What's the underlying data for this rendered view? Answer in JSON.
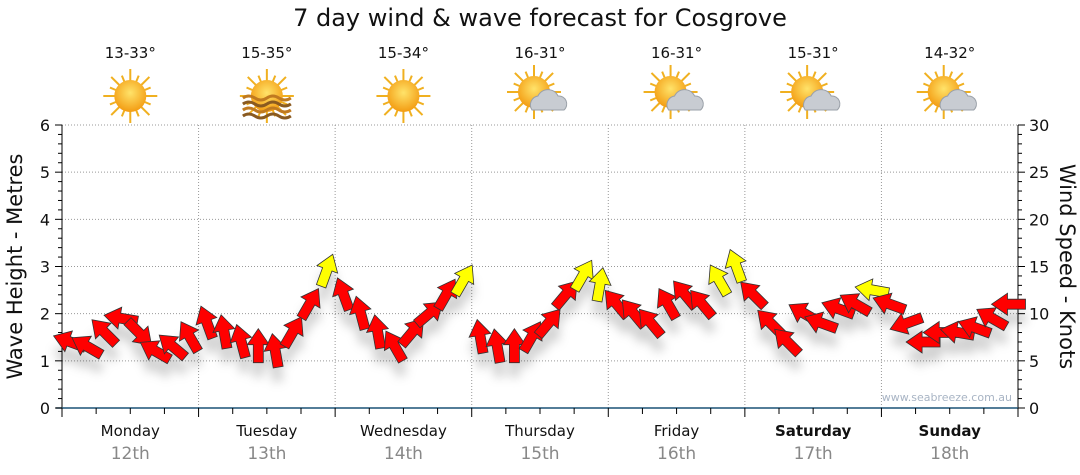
{
  "title": "7 day wind & wave forecast for Cosgrove",
  "watermark": "www.seabreeze.com.au",
  "colors": {
    "wind_low": "#ff0000",
    "wind_high": "#ffff00",
    "axis": "#1a5276"
  },
  "days": [
    {
      "name": "Monday",
      "date": "12th",
      "temp": "13-33°",
      "icon": "sunny-icon",
      "bold": false
    },
    {
      "name": "Tuesday",
      "date": "13th",
      "temp": "15-35°",
      "icon": "hazy-sun-icon",
      "bold": false
    },
    {
      "name": "Wednesday",
      "date": "14th",
      "temp": "15-34°",
      "icon": "sunny-icon",
      "bold": false
    },
    {
      "name": "Thursday",
      "date": "15th",
      "temp": "16-31°",
      "icon": "partly-cloudy-icon",
      "bold": false
    },
    {
      "name": "Friday",
      "date": "16th",
      "temp": "16-31°",
      "icon": "partly-cloudy-icon",
      "bold": false
    },
    {
      "name": "Saturday",
      "date": "17th",
      "temp": "15-31°",
      "icon": "partly-cloudy-icon",
      "bold": true
    },
    {
      "name": "Sunday",
      "date": "18th",
      "temp": "14-32°",
      "icon": "partly-cloudy-icon",
      "bold": true
    }
  ],
  "chart_data": {
    "type": "scatter",
    "title": "7 day wind & wave forecast for Cosgrove",
    "ylabel": "Wave Height - Metres",
    "y2label": "Wind Speed - Knots",
    "ylim": [
      0,
      6
    ],
    "y2lim": [
      0,
      30
    ],
    "yticks": [
      "0",
      "1",
      "2",
      "3",
      "4",
      "5",
      "6"
    ],
    "y2ticks": [
      "0",
      "5",
      "10",
      "15",
      "20",
      "25",
      "30"
    ],
    "grid": true,
    "interval_hours": 3,
    "wind_knots": [
      7,
      6.5,
      8,
      9.5,
      8,
      6,
      6.5,
      7.5,
      9,
      8,
      7,
      6.5,
      6,
      8,
      11,
      14.5,
      12,
      10,
      8,
      6.5,
      8,
      10,
      12,
      13.5,
      7.5,
      6.5,
      6.5,
      7.5,
      9,
      12,
      14,
      13,
      11,
      10,
      9,
      11,
      12,
      11,
      13.5,
      15,
      12,
      9,
      7,
      10,
      9,
      10.5,
      11,
      12.5,
      11,
      9,
      7,
      8,
      8,
      8.5,
      9.5,
      11
    ],
    "wind_heading_deg": [
      -70,
      -60,
      -45,
      -80,
      135,
      -60,
      -50,
      -30,
      -20,
      -10,
      -15,
      0,
      -10,
      30,
      30,
      20,
      -20,
      -15,
      -10,
      -30,
      40,
      50,
      30,
      30,
      -10,
      -10,
      0,
      30,
      40,
      40,
      30,
      10,
      -40,
      -40,
      -40,
      -30,
      -40,
      -40,
      -30,
      -20,
      -45,
      -45,
      -45,
      -60,
      -70,
      -70,
      -60,
      -80,
      -70,
      -110,
      -90,
      -90,
      -80,
      -70,
      -60,
      -90
    ]
  }
}
